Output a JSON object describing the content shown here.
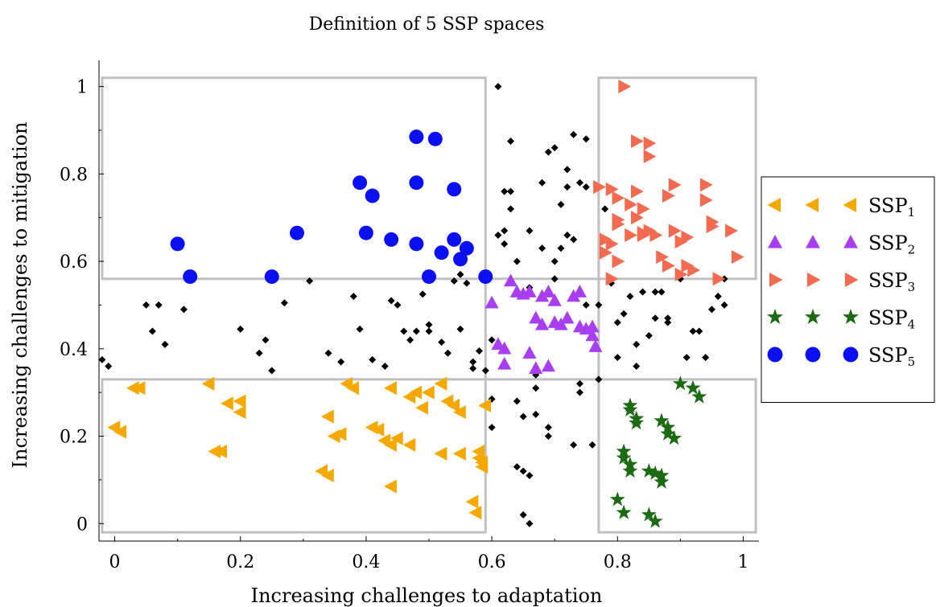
{
  "chart_data": {
    "type": "scatter",
    "title": "Definition of 5 SSP spaces",
    "xlabel": "Increasing challenges to adaptation",
    "ylabel": "Increasing challenges to mitigation",
    "xlim": [
      -0.025,
      1.025
    ],
    "ylim": [
      -0.04,
      1.06
    ],
    "xticks": [
      0,
      0.2,
      0.4,
      0.6,
      0.8,
      1
    ],
    "xtick_labels": [
      "0",
      "0.2",
      "0.4",
      "0.6",
      "0.8",
      "1"
    ],
    "yticks": [
      0,
      0.2,
      0.4,
      0.6,
      0.8,
      1
    ],
    "ytick_labels": [
      "0",
      "0.2",
      "0.4",
      "0.6",
      "0.8",
      "1"
    ],
    "grid": false,
    "legend_position": "outside-right",
    "region_boxes": [
      {
        "x": [
          -0.02,
          0.59
        ],
        "y": [
          -0.02,
          0.33
        ]
      },
      {
        "x": [
          -0.02,
          0.59
        ],
        "y": [
          0.56,
          1.02
        ]
      },
      {
        "x": [
          0.77,
          1.02
        ],
        "y": [
          0.56,
          1.02
        ]
      },
      {
        "x": [
          0.77,
          1.02
        ],
        "y": [
          -0.02,
          0.33
        ]
      },
      {
        "x": [
          0.59,
          0.77
        ],
        "y": [
          0.33,
          0.56
        ]
      }
    ],
    "region_box_color": "#c0c0c0",
    "series": [
      {
        "name": "SSP1",
        "legend_base": "SSP",
        "legend_sub": "1",
        "marker": "triangle-left",
        "color": "#f5a800",
        "points": [
          [
            0.0,
            0.22
          ],
          [
            0.01,
            0.21
          ],
          [
            0.03,
            0.31
          ],
          [
            0.04,
            0.31
          ],
          [
            0.15,
            0.32
          ],
          [
            0.16,
            0.165
          ],
          [
            0.17,
            0.165
          ],
          [
            0.18,
            0.275
          ],
          [
            0.2,
            0.28
          ],
          [
            0.2,
            0.255
          ],
          [
            0.33,
            0.12
          ],
          [
            0.34,
            0.11
          ],
          [
            0.34,
            0.245
          ],
          [
            0.35,
            0.2
          ],
          [
            0.36,
            0.205
          ],
          [
            0.37,
            0.32
          ],
          [
            0.38,
            0.31
          ],
          [
            0.41,
            0.22
          ],
          [
            0.42,
            0.215
          ],
          [
            0.43,
            0.19
          ],
          [
            0.44,
            0.085
          ],
          [
            0.44,
            0.31
          ],
          [
            0.44,
            0.18
          ],
          [
            0.45,
            0.195
          ],
          [
            0.47,
            0.18
          ],
          [
            0.47,
            0.29
          ],
          [
            0.48,
            0.3
          ],
          [
            0.49,
            0.265
          ],
          [
            0.5,
            0.3
          ],
          [
            0.52,
            0.32
          ],
          [
            0.52,
            0.16
          ],
          [
            0.53,
            0.28
          ],
          [
            0.54,
            0.27
          ],
          [
            0.55,
            0.255
          ],
          [
            0.55,
            0.16
          ],
          [
            0.57,
            0.05
          ],
          [
            0.575,
            0.025
          ],
          [
            0.58,
            0.15
          ],
          [
            0.58,
            0.165
          ],
          [
            0.585,
            0.13
          ],
          [
            0.585,
            0.14
          ],
          [
            0.59,
            0.27
          ]
        ]
      },
      {
        "name": "SSP2",
        "legend_base": "SSP",
        "legend_sub": "2",
        "marker": "triangle-up",
        "color": "#a93ef0",
        "points": [
          [
            0.6,
            0.505
          ],
          [
            0.61,
            0.41
          ],
          [
            0.62,
            0.4
          ],
          [
            0.62,
            0.365
          ],
          [
            0.63,
            0.555
          ],
          [
            0.64,
            0.53
          ],
          [
            0.65,
            0.525
          ],
          [
            0.66,
            0.53
          ],
          [
            0.66,
            0.39
          ],
          [
            0.67,
            0.355
          ],
          [
            0.67,
            0.47
          ],
          [
            0.68,
            0.52
          ],
          [
            0.68,
            0.455
          ],
          [
            0.69,
            0.53
          ],
          [
            0.69,
            0.36
          ],
          [
            0.7,
            0.51
          ],
          [
            0.7,
            0.46
          ],
          [
            0.71,
            0.455
          ],
          [
            0.72,
            0.47
          ],
          [
            0.73,
            0.52
          ],
          [
            0.74,
            0.53
          ],
          [
            0.74,
            0.45
          ],
          [
            0.75,
            0.445
          ],
          [
            0.76,
            0.45
          ],
          [
            0.76,
            0.43
          ],
          [
            0.765,
            0.405
          ]
        ]
      },
      {
        "name": "SSP3",
        "legend_base": "SSP",
        "legend_sub": "3",
        "marker": "triangle-right",
        "color": "#f26a4f",
        "points": [
          [
            0.77,
            0.77
          ],
          [
            0.78,
            0.65
          ],
          [
            0.78,
            0.62
          ],
          [
            0.79,
            0.64
          ],
          [
            0.79,
            0.765
          ],
          [
            0.8,
            0.745
          ],
          [
            0.8,
            0.695
          ],
          [
            0.8,
            0.685
          ],
          [
            0.81,
            1.0
          ],
          [
            0.82,
            0.73
          ],
          [
            0.82,
            0.66
          ],
          [
            0.83,
            0.875
          ],
          [
            0.83,
            0.7
          ],
          [
            0.83,
            0.76
          ],
          [
            0.84,
            0.66
          ],
          [
            0.84,
            0.72
          ],
          [
            0.84,
            0.665
          ],
          [
            0.85,
            0.87
          ],
          [
            0.85,
            0.84
          ],
          [
            0.85,
            0.67
          ],
          [
            0.86,
            0.66
          ],
          [
            0.87,
            0.61
          ],
          [
            0.88,
            0.75
          ],
          [
            0.88,
            0.59
          ],
          [
            0.89,
            0.775
          ],
          [
            0.89,
            0.67
          ],
          [
            0.9,
            0.645
          ],
          [
            0.9,
            0.57
          ],
          [
            0.91,
            0.59
          ],
          [
            0.91,
            0.655
          ],
          [
            0.92,
            0.58
          ],
          [
            0.94,
            0.775
          ],
          [
            0.94,
            0.74
          ],
          [
            0.95,
            0.68
          ],
          [
            0.95,
            0.69
          ],
          [
            0.96,
            0.56
          ],
          [
            0.98,
            0.67
          ],
          [
            0.99,
            0.61
          ],
          [
            0.8,
            0.6
          ],
          [
            0.79,
            0.56
          ]
        ]
      },
      {
        "name": "SSP4",
        "legend_base": "SSP",
        "legend_sub": "4",
        "marker": "star",
        "color": "#1b6b12",
        "points": [
          [
            0.8,
            0.055
          ],
          [
            0.81,
            0.025
          ],
          [
            0.81,
            0.165
          ],
          [
            0.81,
            0.15
          ],
          [
            0.82,
            0.135
          ],
          [
            0.82,
            0.12
          ],
          [
            0.82,
            0.27
          ],
          [
            0.82,
            0.26
          ],
          [
            0.83,
            0.24
          ],
          [
            0.83,
            0.23
          ],
          [
            0.85,
            0.12
          ],
          [
            0.85,
            0.02
          ],
          [
            0.86,
            0.005
          ],
          [
            0.86,
            0.115
          ],
          [
            0.87,
            0.11
          ],
          [
            0.87,
            0.235
          ],
          [
            0.87,
            0.095
          ],
          [
            0.88,
            0.205
          ],
          [
            0.88,
            0.22
          ],
          [
            0.89,
            0.195
          ],
          [
            0.9,
            0.32
          ],
          [
            0.92,
            0.31
          ],
          [
            0.93,
            0.29
          ]
        ]
      },
      {
        "name": "SSP5",
        "legend_base": "SSP",
        "legend_sub": "5",
        "marker": "circle",
        "color": "#0a10f0",
        "points": [
          [
            0.1,
            0.64
          ],
          [
            0.12,
            0.565
          ],
          [
            0.25,
            0.565
          ],
          [
            0.29,
            0.665
          ],
          [
            0.39,
            0.78
          ],
          [
            0.4,
            0.665
          ],
          [
            0.41,
            0.75
          ],
          [
            0.44,
            0.65
          ],
          [
            0.48,
            0.885
          ],
          [
            0.48,
            0.78
          ],
          [
            0.48,
            0.64
          ],
          [
            0.5,
            0.565
          ],
          [
            0.51,
            0.88
          ],
          [
            0.52,
            0.62
          ],
          [
            0.54,
            0.765
          ],
          [
            0.54,
            0.65
          ],
          [
            0.55,
            0.605
          ],
          [
            0.56,
            0.63
          ],
          [
            0.59,
            0.565
          ]
        ]
      },
      {
        "name": "",
        "marker": "diamond",
        "color": "#000000",
        "points": [
          [
            -0.02,
            0.375
          ],
          [
            -0.01,
            0.36
          ],
          [
            0.06,
            0.44
          ],
          [
            0.05,
            0.5
          ],
          [
            0.07,
            0.5
          ],
          [
            0.08,
            0.41
          ],
          [
            0.11,
            0.49
          ],
          [
            0.2,
            0.445
          ],
          [
            0.23,
            0.39
          ],
          [
            0.24,
            0.42
          ],
          [
            0.25,
            0.35
          ],
          [
            0.27,
            0.505
          ],
          [
            0.31,
            0.555
          ],
          [
            0.34,
            0.39
          ],
          [
            0.36,
            0.37
          ],
          [
            0.38,
            0.52
          ],
          [
            0.39,
            0.445
          ],
          [
            0.41,
            0.375
          ],
          [
            0.43,
            0.36
          ],
          [
            0.44,
            0.51
          ],
          [
            0.45,
            0.5
          ],
          [
            0.46,
            0.44
          ],
          [
            0.47,
            0.42
          ],
          [
            0.48,
            0.44
          ],
          [
            0.49,
            0.525
          ],
          [
            0.5,
            0.455
          ],
          [
            0.5,
            0.44
          ],
          [
            0.52,
            0.415
          ],
          [
            0.53,
            0.39
          ],
          [
            0.54,
            0.555
          ],
          [
            0.55,
            0.445
          ],
          [
            0.55,
            0.57
          ],
          [
            0.56,
            0.55
          ],
          [
            0.57,
            0.355
          ],
          [
            0.57,
            0.37
          ],
          [
            0.58,
            0.395
          ],
          [
            0.59,
            0.35
          ],
          [
            0.6,
            0.42
          ],
          [
            0.6,
            0.285
          ],
          [
            0.6,
            0.22
          ],
          [
            0.61,
            1.0
          ],
          [
            0.61,
            0.66
          ],
          [
            0.62,
            0.67
          ],
          [
            0.62,
            0.64
          ],
          [
            0.62,
            0.76
          ],
          [
            0.63,
            0.72
          ],
          [
            0.63,
            0.76
          ],
          [
            0.63,
            0.875
          ],
          [
            0.64,
            0.28
          ],
          [
            0.64,
            0.13
          ],
          [
            0.64,
            0.6
          ],
          [
            0.65,
            0.12
          ],
          [
            0.65,
            0.02
          ],
          [
            0.65,
            0.245
          ],
          [
            0.66,
            0.11
          ],
          [
            0.66,
            0.0
          ],
          [
            0.66,
            0.67
          ],
          [
            0.66,
            0.54
          ],
          [
            0.67,
            0.25
          ],
          [
            0.67,
            0.31
          ],
          [
            0.67,
            0.34
          ],
          [
            0.68,
            0.78
          ],
          [
            0.68,
            0.63
          ],
          [
            0.69,
            0.85
          ],
          [
            0.69,
            0.2
          ],
          [
            0.69,
            0.22
          ],
          [
            0.7,
            0.86
          ],
          [
            0.7,
            0.6
          ],
          [
            0.7,
            0.56
          ],
          [
            0.71,
            0.73
          ],
          [
            0.71,
            0.63
          ],
          [
            0.72,
            0.81
          ],
          [
            0.72,
            0.66
          ],
          [
            0.72,
            0.77
          ],
          [
            0.73,
            0.89
          ],
          [
            0.73,
            0.65
          ],
          [
            0.73,
            0.18
          ],
          [
            0.74,
            0.78
          ],
          [
            0.74,
            0.3
          ],
          [
            0.74,
            0.32
          ],
          [
            0.75,
            0.88
          ],
          [
            0.75,
            0.77
          ],
          [
            0.75,
            0.5
          ],
          [
            0.76,
            0.18
          ],
          [
            0.77,
            0.33
          ],
          [
            0.77,
            0.5
          ],
          [
            0.78,
            0.72
          ],
          [
            0.79,
            0.55
          ],
          [
            0.8,
            0.38
          ],
          [
            0.8,
            0.46
          ],
          [
            0.81,
            0.48
          ],
          [
            0.82,
            0.52
          ],
          [
            0.83,
            0.41
          ],
          [
            0.83,
            0.36
          ],
          [
            0.84,
            0.53
          ],
          [
            0.85,
            0.43
          ],
          [
            0.86,
            0.53
          ],
          [
            0.86,
            0.47
          ],
          [
            0.87,
            0.53
          ],
          [
            0.88,
            0.47
          ],
          [
            0.88,
            0.46
          ],
          [
            0.9,
            0.56
          ],
          [
            0.91,
            0.38
          ],
          [
            0.92,
            0.44
          ],
          [
            0.93,
            0.44
          ],
          [
            0.94,
            0.38
          ],
          [
            0.95,
            0.49
          ],
          [
            0.96,
            0.52
          ],
          [
            0.97,
            0.56
          ],
          [
            0.97,
            0.5
          ]
        ]
      }
    ]
  }
}
